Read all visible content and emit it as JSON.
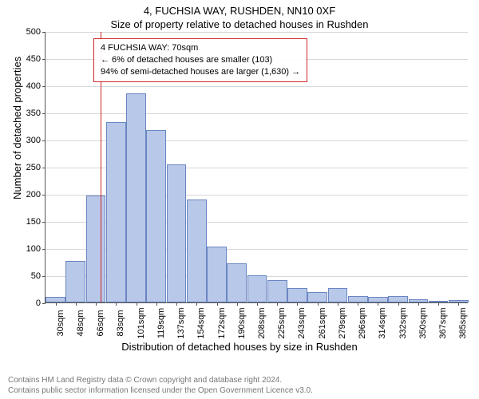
{
  "title_main": "4, FUCHSIA WAY, RUSHDEN, NN10 0XF",
  "title_sub": "Size of property relative to detached houses in Rushden",
  "y_axis": {
    "label": "Number of detached properties",
    "min": 0,
    "max": 500,
    "step": 50,
    "ticks": [
      0,
      50,
      100,
      150,
      200,
      250,
      300,
      350,
      400,
      450,
      500
    ]
  },
  "x_axis": {
    "label": "Distribution of detached houses by size in Rushden",
    "tick_step_sqm": 18,
    "tick_offset_sqm": 30,
    "ticks": [
      "30sqm",
      "48sqm",
      "66sqm",
      "83sqm",
      "101sqm",
      "119sqm",
      "137sqm",
      "154sqm",
      "172sqm",
      "190sqm",
      "208sqm",
      "225sqm",
      "243sqm",
      "261sqm",
      "279sqm",
      "296sqm",
      "314sqm",
      "332sqm",
      "350sqm",
      "367sqm",
      "385sqm"
    ]
  },
  "chart": {
    "type": "histogram",
    "bar_fill": "#b8c8e8",
    "bar_stroke": "#6a86c2",
    "grid_color": "#d8d8d8",
    "background_color": "#ffffff",
    "marker_color": "#d22626",
    "marker_sqm": 70,
    "values": [
      10,
      76,
      197,
      332,
      386,
      317,
      254,
      190,
      103,
      72,
      50,
      41,
      27,
      19,
      26,
      12,
      10,
      12,
      6,
      3,
      5
    ]
  },
  "info_box": {
    "line1": "4 FUCHSIA WAY: 70sqm",
    "line2": "← 6% of detached houses are smaller (103)",
    "line3": "94% of semi-detached houses are larger (1,630) →"
  },
  "footer": {
    "line1": "Contains HM Land Registry data © Crown copyright and database right 2024.",
    "line2": "Contains public sector information licensed under the Open Government Licence v3.0."
  },
  "fonts": {
    "title_size": 13,
    "tick_size": 11,
    "info_size": 11,
    "footer_size": 10
  }
}
